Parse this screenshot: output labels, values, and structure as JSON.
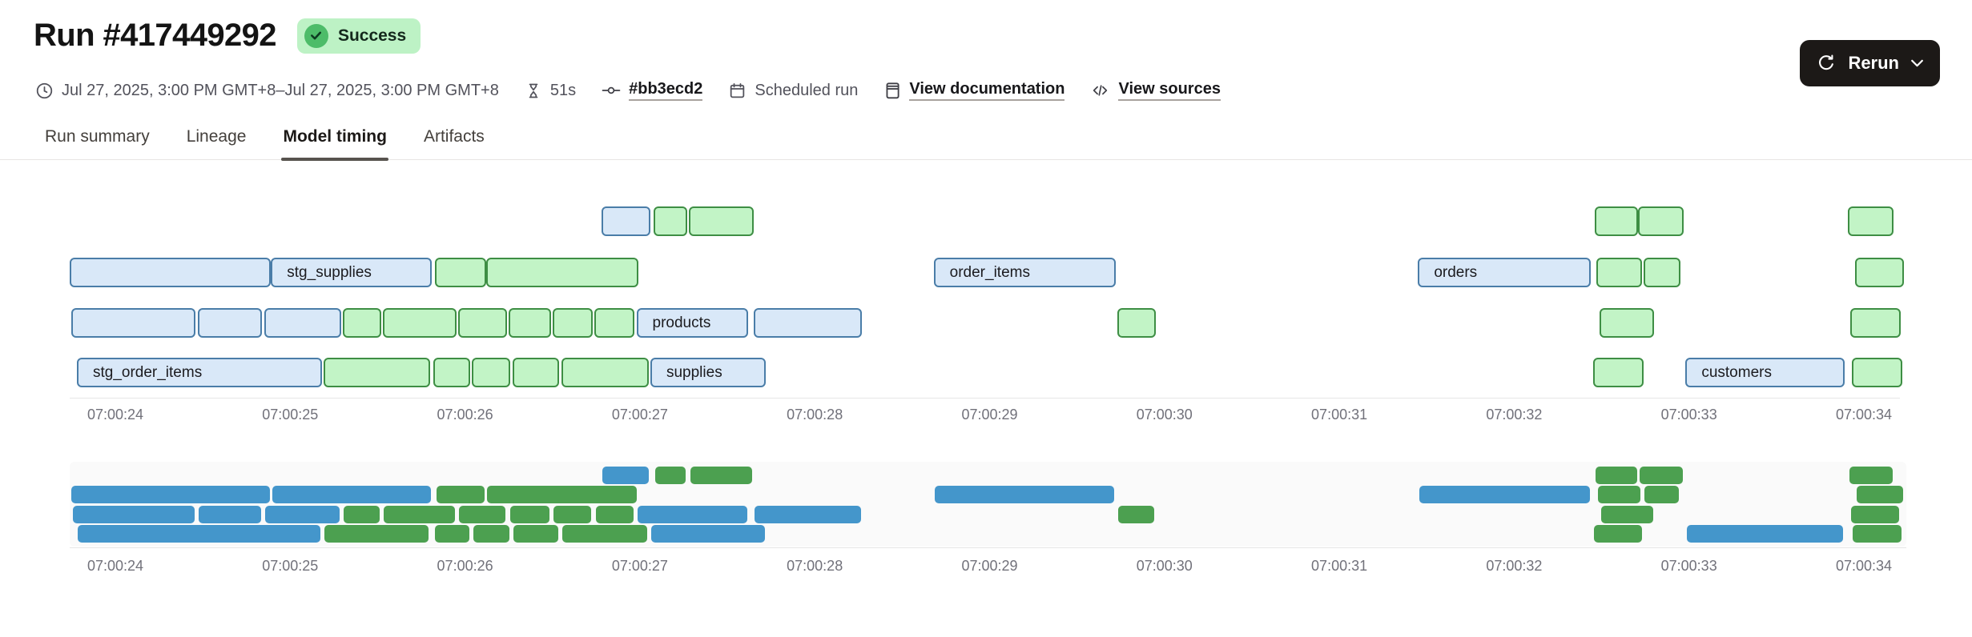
{
  "page": {
    "title": "Run #417449292"
  },
  "header": {
    "status_badge": "Success",
    "rerun_button": "Rerun",
    "meta": {
      "time_range": "Jul 27, 2025, 3:00 PM GMT+8–Jul 27, 2025, 3:00 PM GMT+8",
      "duration": "51s",
      "commit_link": "#bb3ecd2",
      "trigger_type": "Scheduled run",
      "documentation_link": "View documentation",
      "sources_link": "View sources"
    }
  },
  "tabs": [
    {
      "label": "Run summary",
      "active": false
    },
    {
      "label": "Lineage",
      "active": false
    },
    {
      "label": "Model timing",
      "active": true
    },
    {
      "label": "Artifacts",
      "active": false
    }
  ],
  "chart_data": {
    "type": "gantt",
    "title": "Model timing",
    "x_axis": {
      "tick_labels": [
        "07:00:24",
        "07:00:25",
        "07:00:26",
        "07:00:27",
        "07:00:28",
        "07:00:29",
        "07:00:30",
        "07:00:31",
        "07:00:32",
        "07:00:33",
        "07:00:34"
      ],
      "tick_seconds": [
        24,
        25,
        26,
        27,
        28,
        29,
        30,
        31,
        32,
        33,
        34
      ]
    },
    "colors": {
      "bar_blue_fill": "#d9e8f8",
      "bar_blue_border": "#4a7da8",
      "bar_green_fill": "#c2f4c6",
      "bar_green_border": "#3e8e44",
      "minimap_blue": "#4496cb",
      "minimap_green": "#4ca050"
    },
    "row_count": 4,
    "has_minimap": true,
    "bars": [
      {
        "row": 1,
        "start": 26.78,
        "end": 27.06,
        "color": "blue",
        "label": null
      },
      {
        "row": 1,
        "start": 27.08,
        "end": 27.27,
        "color": "green",
        "label": null
      },
      {
        "row": 1,
        "start": 27.28,
        "end": 27.65,
        "color": "green",
        "label": null
      },
      {
        "row": 1,
        "start": 32.46,
        "end": 32.71,
        "color": "green",
        "label": null
      },
      {
        "row": 1,
        "start": 32.71,
        "end": 32.97,
        "color": "green",
        "label": null
      },
      {
        "row": 1,
        "start": 33.91,
        "end": 34.17,
        "color": "green",
        "label": null
      },
      {
        "row": 2,
        "start": 23.74,
        "end": 24.89,
        "color": "blue",
        "label": null
      },
      {
        "row": 2,
        "start": 24.89,
        "end": 25.81,
        "color": "blue",
        "label": "stg_supplies"
      },
      {
        "row": 2,
        "start": 25.83,
        "end": 26.12,
        "color": "green",
        "label": null
      },
      {
        "row": 2,
        "start": 26.12,
        "end": 26.99,
        "color": "green",
        "label": null
      },
      {
        "row": 2,
        "start": 28.68,
        "end": 29.72,
        "color": "blue",
        "label": "order_items"
      },
      {
        "row": 2,
        "start": 31.45,
        "end": 32.44,
        "color": "blue",
        "label": "orders"
      },
      {
        "row": 2,
        "start": 32.47,
        "end": 32.73,
        "color": "green",
        "label": null
      },
      {
        "row": 2,
        "start": 32.74,
        "end": 32.95,
        "color": "green",
        "label": null
      },
      {
        "row": 2,
        "start": 33.95,
        "end": 34.23,
        "color": "green",
        "label": null
      },
      {
        "row": 3,
        "start": 23.75,
        "end": 24.46,
        "color": "blue",
        "label": null
      },
      {
        "row": 3,
        "start": 24.47,
        "end": 24.84,
        "color": "blue",
        "label": null
      },
      {
        "row": 3,
        "start": 24.85,
        "end": 25.29,
        "color": "blue",
        "label": null
      },
      {
        "row": 3,
        "start": 25.3,
        "end": 25.52,
        "color": "green",
        "label": null
      },
      {
        "row": 3,
        "start": 25.53,
        "end": 25.95,
        "color": "green",
        "label": null
      },
      {
        "row": 3,
        "start": 25.96,
        "end": 26.24,
        "color": "green",
        "label": null
      },
      {
        "row": 3,
        "start": 26.25,
        "end": 26.49,
        "color": "green",
        "label": null
      },
      {
        "row": 3,
        "start": 26.5,
        "end": 26.73,
        "color": "green",
        "label": null
      },
      {
        "row": 3,
        "start": 26.74,
        "end": 26.97,
        "color": "green",
        "label": null
      },
      {
        "row": 3,
        "start": 26.98,
        "end": 27.62,
        "color": "blue",
        "label": "products"
      },
      {
        "row": 3,
        "start": 27.65,
        "end": 28.27,
        "color": "blue",
        "label": null
      },
      {
        "row": 3,
        "start": 29.73,
        "end": 29.95,
        "color": "green",
        "label": null
      },
      {
        "row": 3,
        "start": 32.49,
        "end": 32.8,
        "color": "green",
        "label": null
      },
      {
        "row": 3,
        "start": 33.92,
        "end": 34.21,
        "color": "green",
        "label": null
      },
      {
        "row": 4,
        "start": 23.78,
        "end": 25.18,
        "color": "blue",
        "label": "stg_order_items"
      },
      {
        "row": 4,
        "start": 25.19,
        "end": 25.8,
        "color": "green",
        "label": null
      },
      {
        "row": 4,
        "start": 25.82,
        "end": 26.03,
        "color": "green",
        "label": null
      },
      {
        "row": 4,
        "start": 26.04,
        "end": 26.26,
        "color": "green",
        "label": null
      },
      {
        "row": 4,
        "start": 26.27,
        "end": 26.54,
        "color": "green",
        "label": null
      },
      {
        "row": 4,
        "start": 26.55,
        "end": 27.05,
        "color": "green",
        "label": null
      },
      {
        "row": 4,
        "start": 27.06,
        "end": 27.72,
        "color": "blue",
        "label": "supplies"
      },
      {
        "row": 4,
        "start": 32.45,
        "end": 32.74,
        "color": "green",
        "label": null
      },
      {
        "row": 4,
        "start": 32.98,
        "end": 33.89,
        "color": "blue",
        "label": "customers"
      },
      {
        "row": 4,
        "start": 33.93,
        "end": 34.22,
        "color": "green",
        "label": null
      }
    ]
  }
}
